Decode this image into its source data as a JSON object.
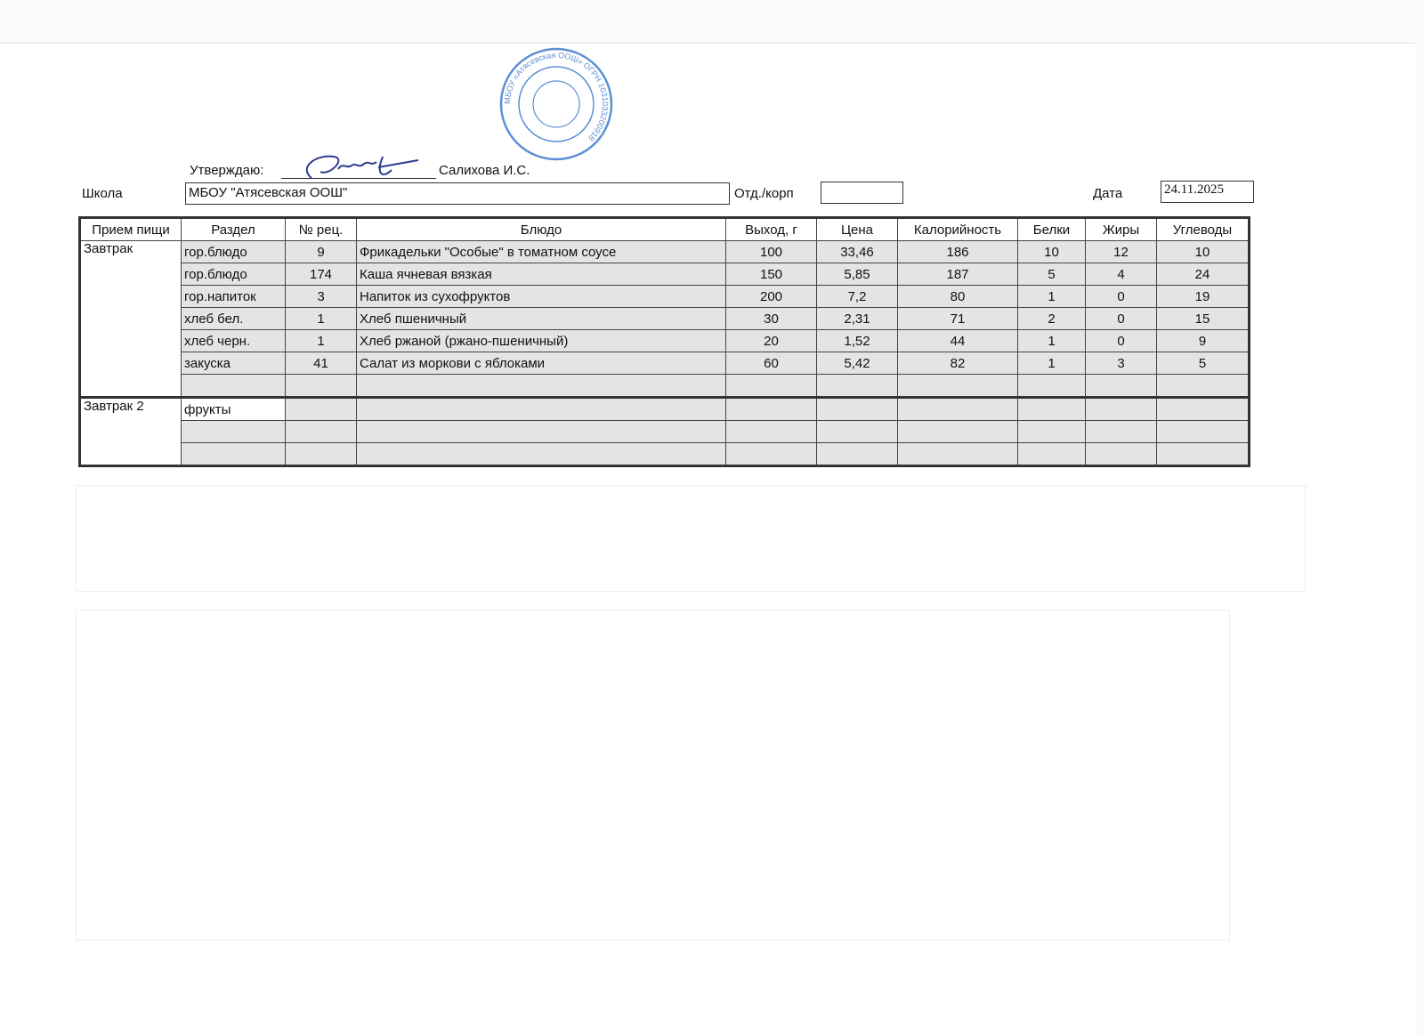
{
  "approval": {
    "label": "Утверждаю:",
    "name": "Салихова И.С."
  },
  "school": {
    "label": "Школа",
    "value": "МБОУ \"Атясевская ООШ\""
  },
  "department": {
    "label": "Отд./корп",
    "value": ""
  },
  "date": {
    "label": "Дата",
    "value": "24.11.2025"
  },
  "stamp": {
    "text": "МБОУ «Атясевская ООШ» ОГРН 1031033200918"
  },
  "table": {
    "headers": [
      "Прием пищи",
      "Раздел",
      "№ рец.",
      "Блюдо",
      "Выход, г",
      "Цена",
      "Калорийность",
      "Белки",
      "Жиры",
      "Углеводы"
    ],
    "breakfast": {
      "meal": "Завтрак",
      "rows": [
        [
          "гор.блюдо",
          "9",
          "Фрикадельки \"Особые\" в томатном соусе",
          "100",
          "33,46",
          "186",
          "10",
          "12",
          "10"
        ],
        [
          "гор.блюдо",
          "174",
          "Каша ячневая вязкая",
          "150",
          "5,85",
          "187",
          "5",
          "4",
          "24"
        ],
        [
          "гор.напиток",
          "3",
          "Напиток из  сухофруктов",
          "200",
          "7,2",
          "80",
          "1",
          "0",
          "19"
        ],
        [
          "хлеб бел.",
          "1",
          "Хлеб пшеничный",
          "30",
          "2,31",
          "71",
          "2",
          "0",
          "15"
        ],
        [
          "хлеб черн.",
          "1",
          "Хлеб ржаной (ржано-пшеничный)",
          "20",
          "1,52",
          "44",
          "1",
          "0",
          "9"
        ],
        [
          "закуска",
          "41",
          "Салат из моркови с яблоками",
          "60",
          "5,42",
          "82",
          "1",
          "3",
          "5"
        ]
      ]
    },
    "breakfast2": {
      "meal": "Завтрак 2",
      "section": "фрукты"
    }
  }
}
